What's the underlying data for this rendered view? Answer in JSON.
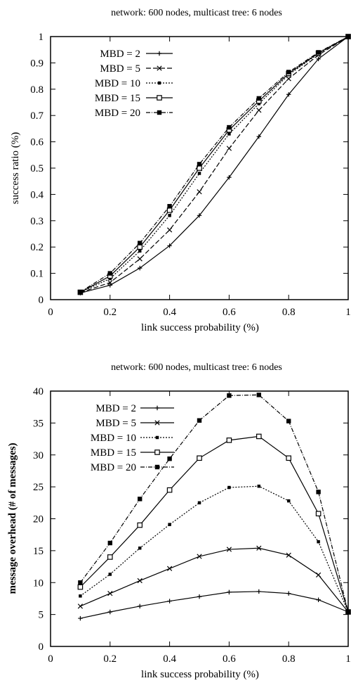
{
  "chart_data": [
    {
      "type": "line",
      "title": "network: 600 nodes, multicast tree: 6 nodes",
      "xlabel": "link success probability (%)",
      "ylabel": "success ratio (%)",
      "xlim": [
        0,
        1
      ],
      "ylim": [
        0,
        1
      ],
      "x_ticks": [
        0,
        0.2,
        0.4,
        0.6,
        0.8,
        1
      ],
      "x_tick_labels": [
        "0",
        "0.2",
        "0.4",
        "0.6",
        "0.8",
        "1"
      ],
      "y_ticks": [
        0,
        0.1,
        0.2,
        0.3,
        0.4,
        0.5,
        0.6,
        0.7,
        0.8,
        0.9,
        1
      ],
      "y_tick_labels": [
        "0",
        "0.1",
        "0.2",
        "0.3",
        "0.4",
        "0.5",
        "0.6",
        "0.7",
        "0.8",
        "0.9",
        "1"
      ],
      "grid": false,
      "legend_position": "top-left",
      "x": [
        0.1,
        0.2,
        0.3,
        0.4,
        0.5,
        0.6,
        0.7,
        0.8,
        0.9,
        1.0
      ],
      "series": [
        {
          "name": "MBD = 2",
          "marker": "plus",
          "dash": "solid",
          "values": [
            0.025,
            0.055,
            0.12,
            0.205,
            0.32,
            0.465,
            0.62,
            0.78,
            0.915,
            1.0
          ]
        },
        {
          "name": "MBD = 5",
          "marker": "cross",
          "dash": "long-dash",
          "values": [
            0.027,
            0.065,
            0.155,
            0.265,
            0.41,
            0.575,
            0.72,
            0.84,
            0.93,
            1.0
          ]
        },
        {
          "name": "MBD = 10",
          "marker": "square-small",
          "dash": "dotted",
          "values": [
            0.028,
            0.08,
            0.185,
            0.32,
            0.48,
            0.63,
            0.745,
            0.855,
            0.935,
            1.0
          ]
        },
        {
          "name": "MBD = 15",
          "marker": "square-open",
          "dash": "solid",
          "values": [
            0.028,
            0.09,
            0.2,
            0.34,
            0.5,
            0.645,
            0.755,
            0.86,
            0.937,
            1.0
          ]
        },
        {
          "name": "MBD = 20",
          "marker": "square-filled",
          "dash": "dash-dot",
          "values": [
            0.029,
            0.1,
            0.215,
            0.355,
            0.515,
            0.655,
            0.765,
            0.865,
            0.94,
            1.0
          ]
        }
      ]
    },
    {
      "type": "line",
      "title": "network: 600 nodes, multicast tree: 6 nodes",
      "xlabel": "link success probability (%)",
      "ylabel": "message overhead (# of messages)",
      "xlim": [
        0,
        1
      ],
      "ylim": [
        0,
        40
      ],
      "x_ticks": [
        0,
        0.2,
        0.4,
        0.6,
        0.8,
        1
      ],
      "x_tick_labels": [
        "0",
        "0.2",
        "0.4",
        "0.6",
        "0.8",
        "1"
      ],
      "y_ticks": [
        0,
        5,
        10,
        15,
        20,
        25,
        30,
        35,
        40
      ],
      "y_tick_labels": [
        "0",
        "5",
        "10",
        "15",
        "20",
        "25",
        "30",
        "35",
        "40"
      ],
      "grid": false,
      "legend_position": "top-left",
      "x": [
        0.1,
        0.2,
        0.3,
        0.4,
        0.5,
        0.6,
        0.7,
        0.8,
        0.9,
        1.0
      ],
      "series": [
        {
          "name": "MBD = 2",
          "marker": "plus",
          "dash": "solid",
          "values": [
            4.4,
            5.4,
            6.3,
            7.1,
            7.8,
            8.5,
            8.6,
            8.3,
            7.3,
            5.4
          ]
        },
        {
          "name": "MBD = 5",
          "marker": "cross",
          "dash": "solid",
          "values": [
            6.3,
            8.3,
            10.3,
            12.2,
            14.1,
            15.2,
            15.4,
            14.3,
            11.2,
            5.4
          ]
        },
        {
          "name": "MBD = 10",
          "marker": "square-small",
          "dash": "dotted",
          "values": [
            7.9,
            11.3,
            15.4,
            19.1,
            22.5,
            24.9,
            25.1,
            22.8,
            16.4,
            5.4
          ]
        },
        {
          "name": "MBD = 15",
          "marker": "square-open",
          "dash": "solid",
          "values": [
            9.3,
            14.0,
            19.0,
            24.5,
            29.5,
            32.3,
            32.9,
            29.5,
            20.8,
            5.4
          ]
        },
        {
          "name": "MBD = 20",
          "marker": "square-filled",
          "dash": "dash-dot",
          "values": [
            10.0,
            16.2,
            23.1,
            29.4,
            35.4,
            39.3,
            39.4,
            35.3,
            24.2,
            5.4
          ]
        }
      ]
    }
  ]
}
